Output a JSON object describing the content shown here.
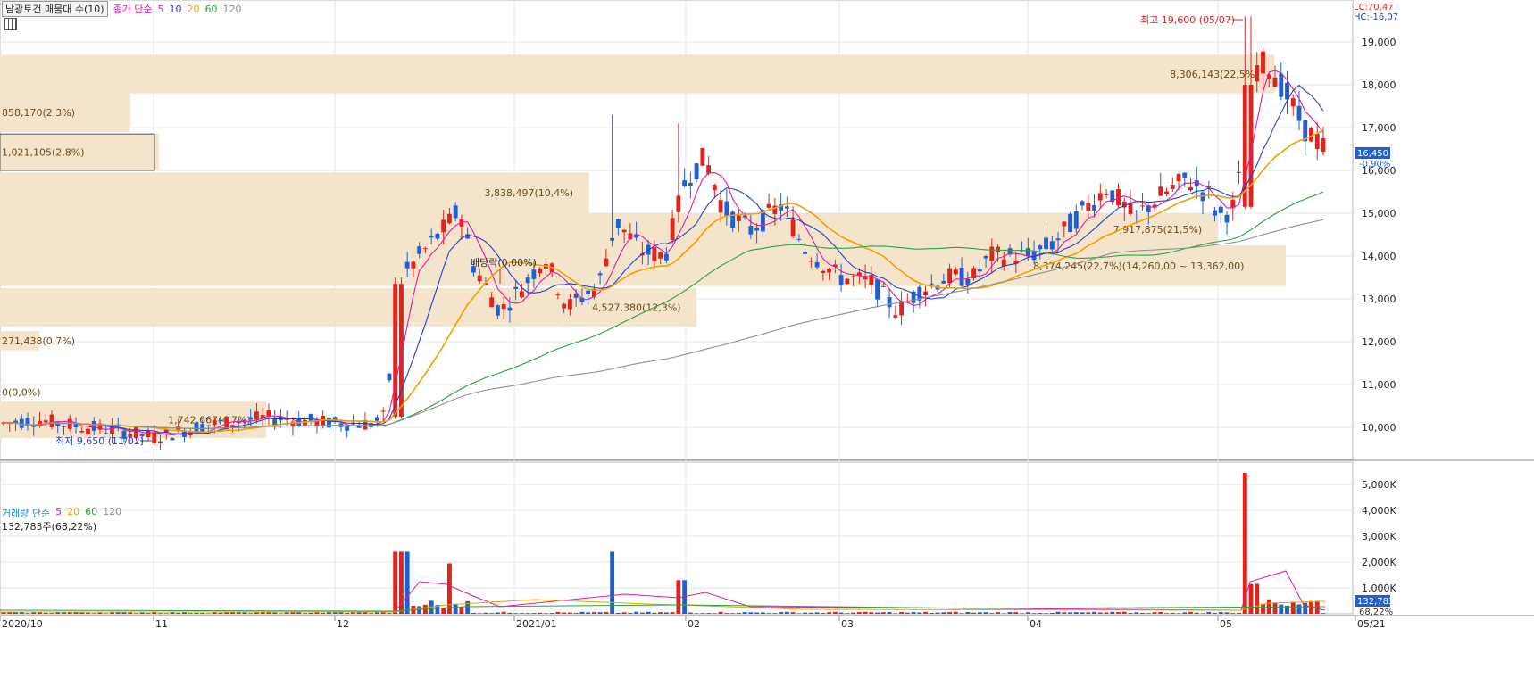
{
  "legend": {
    "stock": "남광토건 매물대 수(10)",
    "price_label": "종가 단순",
    "ma": [
      {
        "label": "5",
        "color": "#e8189a"
      },
      {
        "label": "10",
        "color": "#1f3fd0"
      },
      {
        "label": "20",
        "color": "#f0a000"
      },
      {
        "label": "60",
        "color": "#2aa040"
      },
      {
        "label": "120",
        "color": "#909090"
      }
    ]
  },
  "volume_legend": {
    "title": "거래량 단순",
    "ma": [
      {
        "label": "5",
        "color": "#e8189a"
      },
      {
        "label": "20",
        "color": "#f0a000"
      },
      {
        "label": "60",
        "color": "#2aa040"
      },
      {
        "label": "120",
        "color": "#909090"
      }
    ],
    "info": "132,783주(68,22%)"
  },
  "corner": {
    "lc": "LC:70,47",
    "hc": "HC:-16,07"
  },
  "chart_data": {
    "type": "candlestick",
    "price_axis": {
      "min": 9600,
      "max": 19600,
      "ticks": [
        "10,000",
        "11,000",
        "12,000",
        "13,000",
        "14,000",
        "15,000",
        "16,000",
        "17,000",
        "18,000",
        "19,000"
      ]
    },
    "volume_axis": {
      "ticks": [
        "1,000K",
        "2,000K",
        "3,000K",
        "4,000K",
        "5,000K"
      ]
    },
    "x_labels": [
      "2020/10",
      "11",
      "12",
      "2021/01",
      "02",
      "03",
      "04",
      "05",
      "05/21"
    ],
    "current_price": "16,450",
    "current_change": "-0,90%",
    "current_volume": "132,783",
    "current_volume_pct": "68,22%",
    "high_annotation": "최고 19,600 (05/07)",
    "low_annotation": "최저 9,650 (11/02)",
    "dividend_label": "배당락(0,00%)",
    "volume_profile": [
      {
        "label": "271,438(0,7%)",
        "low": 11800,
        "high": 12250,
        "pct": 0.7
      },
      {
        "label": "4,527,380(12,3%)",
        "low": 12350,
        "high": 13250,
        "pct": 12.3
      },
      {
        "label": "8,374,245(22,7%)(14,260,00 ~ 13,362,00)",
        "low": 13300,
        "high": 14250,
        "pct": 22.7
      },
      {
        "label": "7,917,875(21,5%)",
        "low": 14250,
        "high": 15000,
        "pct": 21.5
      },
      {
        "label": "3,838,497(10,4%)",
        "low": 15000,
        "high": 15950,
        "pct": 10.4
      },
      {
        "label": "1,021,105(2,8%)",
        "low": 16000,
        "high": 16850,
        "pct": 2.8
      },
      {
        "label": "858,170(2,3%)",
        "low": 16900,
        "high": 17800,
        "pct": 2.3
      },
      {
        "label": "8,306,143(22,5%)",
        "low": 17800,
        "high": 18700,
        "pct": 22.5
      },
      {
        "label": "1,742,667(4,7%)",
        "low": 9750,
        "high": 10600,
        "pct": 4.7
      },
      {
        "label": "0(0,0%)",
        "low": 10650,
        "high": 11000,
        "pct": 0.0
      }
    ],
    "ohlc": []
  }
}
